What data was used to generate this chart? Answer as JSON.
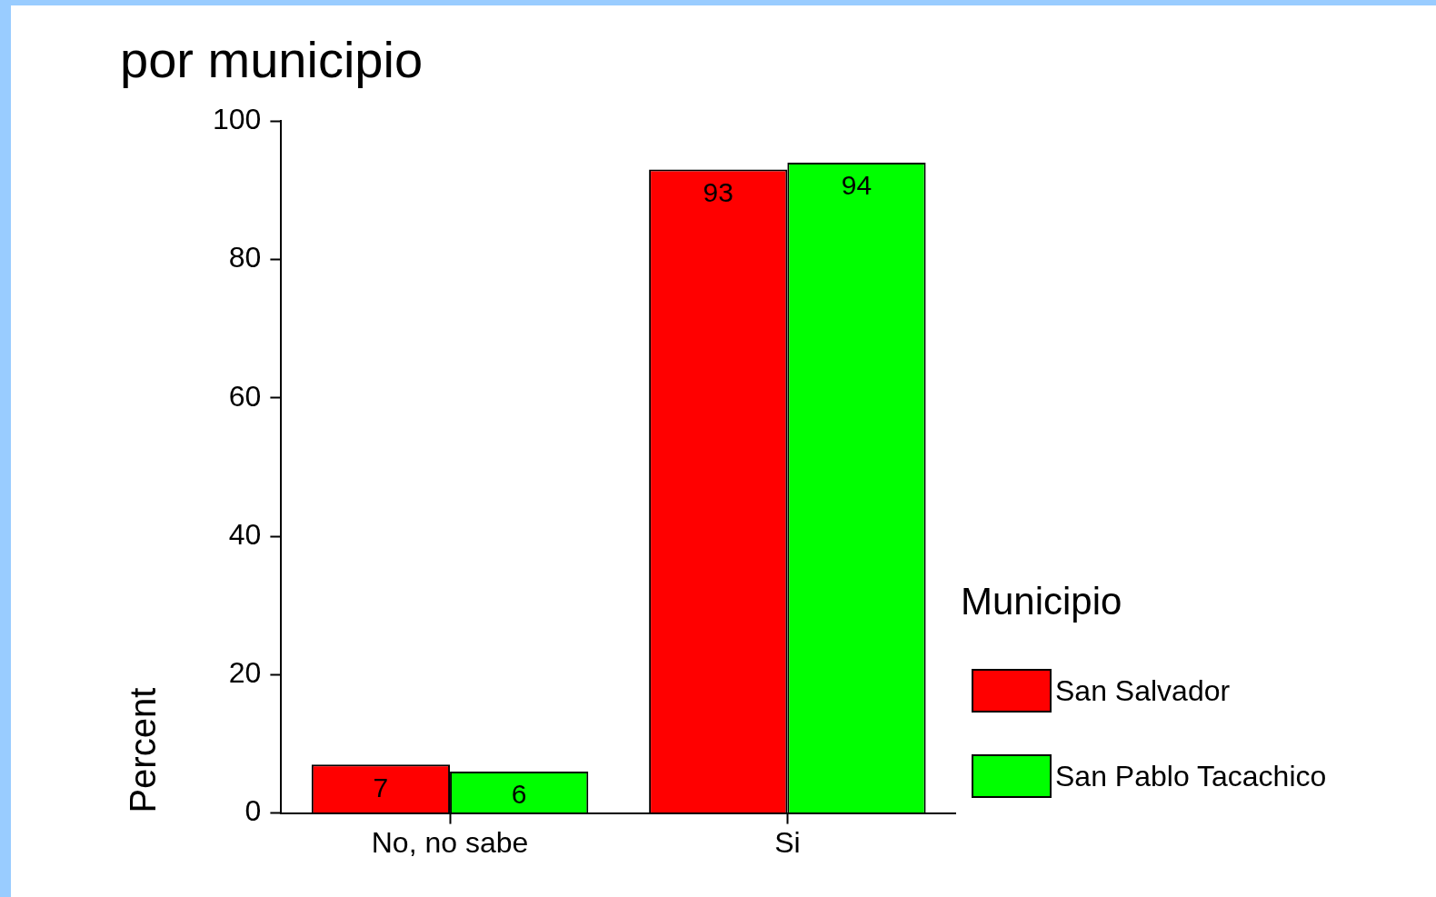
{
  "chart_data": {
    "type": "bar",
    "title": "por municipio",
    "ylabel": "Percent",
    "legend_title": "Municipio",
    "categories": [
      "No, no sabe",
      "Si"
    ],
    "series": [
      {
        "name": "San Salvador",
        "color": "#ff0000",
        "values": [
          7,
          93
        ]
      },
      {
        "name": "San Pablo Tacachico",
        "color": "#00ff00",
        "values": [
          6,
          94
        ]
      }
    ],
    "ylim": [
      0,
      100
    ],
    "yticks": [
      0,
      20,
      40,
      60,
      80,
      100
    ],
    "grid": false,
    "legend": "right",
    "data_labels": true
  }
}
